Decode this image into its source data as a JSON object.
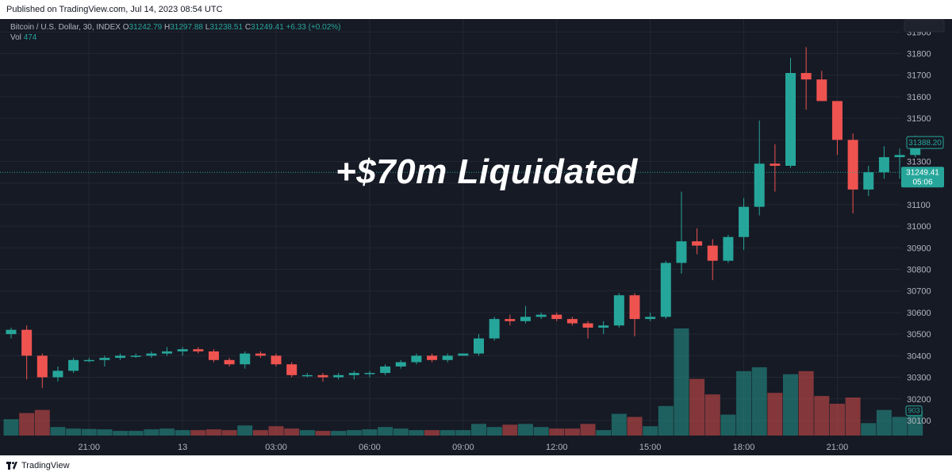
{
  "header": {
    "published": "Published on TradingView.com, Jul 14, 2023 08:54 UTC"
  },
  "footer": {
    "brand": "TradingView"
  },
  "legend": {
    "symbol": "Bitcoin / U.S. Dollar, 30, INDEX",
    "o_label": "O",
    "o_value": "31242.79",
    "h_label": "H",
    "h_value": "31297.88",
    "l_label": "L",
    "l_value": "31238.51",
    "c_label": "C",
    "c_value": "31249.41",
    "change": "+6.33 (+0.02%)",
    "vol_label": "Vol",
    "vol_value": "474"
  },
  "annotation": "+$70m Liquidated",
  "price_tags": {
    "last": "31388.20",
    "current": "31249.41",
    "countdown": "05:06",
    "volume": "903"
  },
  "colors": {
    "up": "#26a69a",
    "down": "#ef5350",
    "background": "#161a25",
    "grid": "#222733",
    "axis_text": "#b2b5be"
  },
  "chart_data": {
    "type": "candlestick",
    "title": "",
    "xlabel": "",
    "ylabel": "",
    "ylim": [
      30030,
      31960
    ],
    "y_ticks": [
      30100,
      30200,
      30300,
      30400,
      30500,
      30600,
      30700,
      30800,
      30900,
      31000,
      31100,
      31200,
      31300,
      31400,
      31500,
      31600,
      31700,
      31800,
      31900
    ],
    "x_ticks": [
      {
        "label": "21:00",
        "index": 5
      },
      {
        "label": "13",
        "index": 11
      },
      {
        "label": "03:00",
        "index": 17
      },
      {
        "label": "06:00",
        "index": 23
      },
      {
        "label": "09:00",
        "index": 29
      },
      {
        "label": "12:00",
        "index": 35
      },
      {
        "label": "15:00",
        "index": 41
      },
      {
        "label": "18:00",
        "index": 47
      },
      {
        "label": "21:00",
        "index": 53
      }
    ],
    "grid": true,
    "candles": [
      {
        "o": 30500,
        "h": 30530,
        "l": 30480,
        "c": 30520,
        "v": 210
      },
      {
        "o": 30520,
        "h": 30540,
        "l": 30290,
        "c": 30400,
        "v": 290
      },
      {
        "o": 30400,
        "h": 30410,
        "l": 30250,
        "c": 30300,
        "v": 330
      },
      {
        "o": 30300,
        "h": 30350,
        "l": 30280,
        "c": 30330,
        "v": 110
      },
      {
        "o": 30330,
        "h": 30390,
        "l": 30320,
        "c": 30380,
        "v": 90
      },
      {
        "o": 30380,
        "h": 30390,
        "l": 30370,
        "c": 30380,
        "v": 85
      },
      {
        "o": 30380,
        "h": 30400,
        "l": 30350,
        "c": 30390,
        "v": 80
      },
      {
        "o": 30390,
        "h": 30410,
        "l": 30380,
        "c": 30400,
        "v": 60
      },
      {
        "o": 30400,
        "h": 30410,
        "l": 30390,
        "c": 30400,
        "v": 60
      },
      {
        "o": 30400,
        "h": 30420,
        "l": 30390,
        "c": 30410,
        "v": 80
      },
      {
        "o": 30410,
        "h": 30440,
        "l": 30400,
        "c": 30420,
        "v": 90
      },
      {
        "o": 30420,
        "h": 30440,
        "l": 30400,
        "c": 30430,
        "v": 70
      },
      {
        "o": 30430,
        "h": 30440,
        "l": 30410,
        "c": 30420,
        "v": 70
      },
      {
        "o": 30420,
        "h": 30430,
        "l": 30370,
        "c": 30380,
        "v": 80
      },
      {
        "o": 30380,
        "h": 30390,
        "l": 30350,
        "c": 30360,
        "v": 70
      },
      {
        "o": 30360,
        "h": 30420,
        "l": 30340,
        "c": 30410,
        "v": 130
      },
      {
        "o": 30410,
        "h": 30420,
        "l": 30390,
        "c": 30400,
        "v": 70
      },
      {
        "o": 30400,
        "h": 30410,
        "l": 30350,
        "c": 30360,
        "v": 120
      },
      {
        "o": 30360,
        "h": 30370,
        "l": 30300,
        "c": 30310,
        "v": 90
      },
      {
        "o": 30310,
        "h": 30320,
        "l": 30300,
        "c": 30310,
        "v": 70
      },
      {
        "o": 30310,
        "h": 30320,
        "l": 30280,
        "c": 30300,
        "v": 60
      },
      {
        "o": 30300,
        "h": 30320,
        "l": 30290,
        "c": 30310,
        "v": 60
      },
      {
        "o": 30310,
        "h": 30330,
        "l": 30290,
        "c": 30320,
        "v": 70
      },
      {
        "o": 30320,
        "h": 30330,
        "l": 30300,
        "c": 30320,
        "v": 80
      },
      {
        "o": 30320,
        "h": 30360,
        "l": 30310,
        "c": 30350,
        "v": 110
      },
      {
        "o": 30350,
        "h": 30380,
        "l": 30340,
        "c": 30370,
        "v": 90
      },
      {
        "o": 30370,
        "h": 30410,
        "l": 30360,
        "c": 30400,
        "v": 70
      },
      {
        "o": 30400,
        "h": 30410,
        "l": 30370,
        "c": 30380,
        "v": 70
      },
      {
        "o": 30380,
        "h": 30410,
        "l": 30370,
        "c": 30400,
        "v": 70
      },
      {
        "o": 30400,
        "h": 30410,
        "l": 30400,
        "c": 30410,
        "v": 70
      },
      {
        "o": 30410,
        "h": 30500,
        "l": 30400,
        "c": 30480,
        "v": 150
      },
      {
        "o": 30480,
        "h": 30580,
        "l": 30470,
        "c": 30570,
        "v": 110
      },
      {
        "o": 30570,
        "h": 30590,
        "l": 30540,
        "c": 30560,
        "v": 140
      },
      {
        "o": 30560,
        "h": 30630,
        "l": 30550,
        "c": 30580,
        "v": 150
      },
      {
        "o": 30580,
        "h": 30600,
        "l": 30570,
        "c": 30590,
        "v": 110
      },
      {
        "o": 30590,
        "h": 30600,
        "l": 30560,
        "c": 30570,
        "v": 90
      },
      {
        "o": 30570,
        "h": 30580,
        "l": 30540,
        "c": 30550,
        "v": 90
      },
      {
        "o": 30550,
        "h": 30560,
        "l": 30480,
        "c": 30530,
        "v": 150
      },
      {
        "o": 30530,
        "h": 30560,
        "l": 30500,
        "c": 30540,
        "v": 70
      },
      {
        "o": 30540,
        "h": 30690,
        "l": 30530,
        "c": 30680,
        "v": 280
      },
      {
        "o": 30680,
        "h": 30690,
        "l": 30490,
        "c": 30570,
        "v": 240
      },
      {
        "o": 30570,
        "h": 30600,
        "l": 30560,
        "c": 30580,
        "v": 120
      },
      {
        "o": 30580,
        "h": 30840,
        "l": 30570,
        "c": 30830,
        "v": 380
      },
      {
        "o": 30830,
        "h": 31160,
        "l": 30780,
        "c": 30930,
        "v": 1380
      },
      {
        "o": 30930,
        "h": 30990,
        "l": 30870,
        "c": 30910,
        "v": 730
      },
      {
        "o": 30910,
        "h": 30940,
        "l": 30750,
        "c": 30840,
        "v": 530
      },
      {
        "o": 30840,
        "h": 30960,
        "l": 30830,
        "c": 30950,
        "v": 270
      },
      {
        "o": 30950,
        "h": 31130,
        "l": 30890,
        "c": 31090,
        "v": 830
      },
      {
        "o": 31090,
        "h": 31490,
        "l": 31050,
        "c": 31290,
        "v": 880
      },
      {
        "o": 31290,
        "h": 31380,
        "l": 31160,
        "c": 31280,
        "v": 550
      },
      {
        "o": 31280,
        "h": 31780,
        "l": 31270,
        "c": 31710,
        "v": 790
      },
      {
        "o": 31710,
        "h": 31830,
        "l": 31540,
        "c": 31680,
        "v": 830
      },
      {
        "o": 31680,
        "h": 31720,
        "l": 31580,
        "c": 31580,
        "v": 510
      },
      {
        "o": 31580,
        "h": 31580,
        "l": 31330,
        "c": 31400,
        "v": 410
      },
      {
        "o": 31400,
        "h": 31430,
        "l": 31060,
        "c": 31170,
        "v": 490
      },
      {
        "o": 31170,
        "h": 31280,
        "l": 31140,
        "c": 31250,
        "v": 160
      },
      {
        "o": 31250,
        "h": 31370,
        "l": 31220,
        "c": 31320,
        "v": 330
      },
      {
        "o": 31320,
        "h": 31360,
        "l": 31220,
        "c": 31330,
        "v": 240
      },
      {
        "o": 31330,
        "h": 31420,
        "l": 31320,
        "c": 31388,
        "v": 320
      }
    ]
  }
}
